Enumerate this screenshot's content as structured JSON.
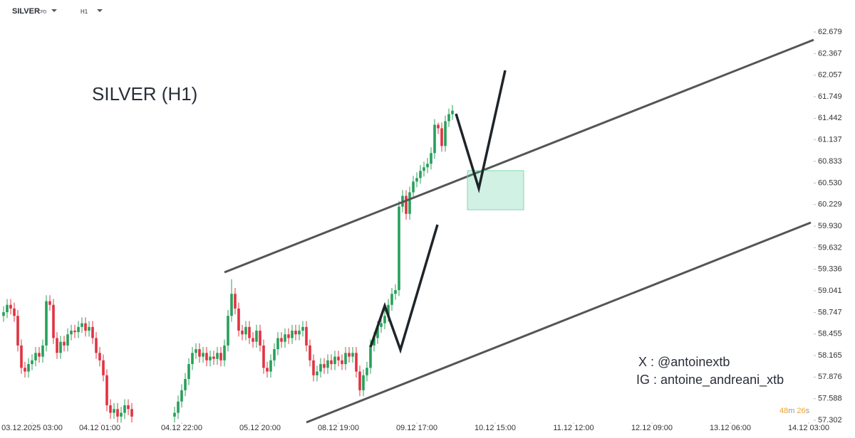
{
  "toolbar": {
    "symbol": "SILVER",
    "symbol_type": "CFD",
    "timeframe": "H1"
  },
  "chart_data": {
    "type": "candlestick",
    "title": "SILVER (H1)",
    "annotations": [
      "X : @antoinextb",
      "IG : antoine_andreani_xtb"
    ],
    "timer": [
      "48",
      "m",
      "26",
      "s"
    ],
    "up_color": "#27a05a",
    "down_color": "#e03341",
    "log_scale": true,
    "ylim": [
      57.302,
      62.679
    ],
    "yticks": [
      62.679,
      62.367,
      62.057,
      61.749,
      61.442,
      61.137,
      60.833,
      {
        "value": 60.53,
        "label": "60.530"
      },
      60.229,
      {
        "value": 59.93,
        "label": "59.930"
      },
      59.632,
      59.336,
      59.041,
      58.747,
      58.455,
      58.165,
      57.876,
      57.588,
      57.302
    ],
    "xlim": [
      -1,
      227
    ],
    "xticks": [
      {
        "value": 8,
        "label": "03.12.2025  03:00"
      },
      {
        "value": 27,
        "label": "04.12  01:00"
      },
      {
        "value": 50,
        "label": "04.12  22:00"
      },
      {
        "value": 72,
        "label": "05.12  20:00"
      },
      {
        "value": 94,
        "label": "08.12  19:00"
      },
      {
        "value": 116,
        "label": "09.12  17:00"
      },
      {
        "value": 138,
        "label": "10.12  15:00"
      },
      {
        "value": 160,
        "label": "11.12  12:00"
      },
      {
        "value": 182,
        "label": "12.12  09:00"
      },
      {
        "value": 204,
        "label": "13.12  06:00"
      },
      {
        "value": 226,
        "label": "14.12  03:00"
      }
    ],
    "x": [
      0,
      1,
      2,
      3,
      4,
      5,
      6,
      7,
      8,
      9,
      10,
      11,
      12,
      13,
      14,
      15,
      16,
      17,
      18,
      19,
      20,
      21,
      22,
      23,
      24,
      25,
      26,
      27,
      28,
      29,
      30,
      31,
      32,
      33,
      34,
      35,
      36,
      48,
      49,
      50,
      51,
      52,
      53,
      54,
      55,
      56,
      57,
      58,
      59,
      60,
      61,
      62,
      63,
      64,
      65,
      66,
      67,
      68,
      69,
      70,
      71,
      72,
      73,
      74,
      75,
      76,
      77,
      78,
      79,
      80,
      81,
      82,
      83,
      84,
      85,
      86,
      87,
      88,
      89,
      90,
      91,
      92,
      93,
      94,
      95,
      96,
      97,
      98,
      99,
      100,
      101,
      102,
      103,
      104,
      105,
      106,
      107,
      108,
      109,
      110,
      111,
      112,
      113,
      114,
      115,
      116,
      117,
      118,
      119,
      120,
      121,
      122,
      123,
      124,
      125,
      126
    ],
    "open": [
      58.7,
      58.75,
      58.85,
      58.8,
      58.7,
      58.3,
      58.0,
      57.95,
      58.05,
      58.1,
      58.2,
      58.15,
      58.3,
      58.9,
      58.85,
      58.4,
      58.2,
      58.35,
      58.3,
      58.45,
      58.5,
      58.48,
      58.55,
      58.6,
      58.5,
      58.55,
      58.4,
      58.2,
      58.1,
      57.9,
      57.5,
      57.4,
      57.45,
      57.35,
      57.4,
      57.5,
      57.45,
      57.35,
      57.4,
      57.55,
      57.7,
      57.85,
      58.05,
      58.2,
      58.25,
      58.15,
      58.2,
      58.1,
      58.15,
      58.12,
      58.2,
      58.1,
      58.3,
      58.7,
      59.0,
      58.8,
      58.5,
      58.45,
      58.55,
      58.4,
      58.35,
      58.5,
      58.3,
      58.0,
      57.95,
      58.1,
      58.25,
      58.4,
      58.35,
      58.45,
      58.4,
      58.5,
      58.45,
      58.5,
      58.55,
      58.3,
      58.1,
      57.9,
      57.95,
      58.05,
      58.0,
      58.1,
      58.05,
      58.15,
      58.1,
      58.05,
      58.2,
      58.15,
      58.2,
      57.95,
      57.7,
      57.9,
      58.0,
      58.3,
      58.4,
      58.55,
      58.6,
      58.7,
      58.85,
      59.0,
      59.05,
      60.2,
      60.35,
      60.1,
      60.4,
      60.55,
      60.6,
      60.7,
      60.75,
      60.8,
      60.95,
      61.35,
      61.3,
      61.05,
      61.4,
      61.5
    ],
    "high": [
      58.83,
      58.93,
      58.93,
      58.88,
      58.78,
      58.38,
      58.08,
      58.13,
      58.18,
      58.28,
      58.28,
      58.38,
      58.98,
      58.98,
      58.93,
      58.48,
      58.43,
      58.43,
      58.53,
      58.58,
      58.58,
      58.63,
      58.68,
      58.68,
      58.63,
      58.63,
      58.48,
      58.28,
      58.18,
      57.98,
      57.58,
      57.53,
      57.53,
      57.48,
      57.58,
      57.58,
      57.53,
      57.48,
      57.63,
      57.78,
      57.93,
      58.13,
      58.28,
      58.33,
      58.33,
      58.28,
      58.28,
      58.23,
      58.23,
      58.28,
      58.28,
      58.38,
      58.78,
      59.2,
      59.08,
      58.88,
      58.58,
      58.63,
      58.63,
      58.48,
      58.58,
      58.58,
      58.38,
      58.08,
      58.18,
      58.33,
      58.48,
      58.48,
      58.53,
      58.53,
      58.58,
      58.58,
      58.58,
      58.63,
      58.63,
      58.38,
      58.18,
      58.03,
      58.13,
      58.13,
      58.18,
      58.18,
      58.23,
      58.23,
      58.18,
      58.28,
      58.28,
      58.28,
      58.28,
      58.03,
      57.98,
      58.08,
      58.38,
      58.48,
      58.63,
      58.68,
      58.78,
      58.93,
      59.08,
      59.13,
      60.28,
      60.43,
      60.43,
      60.48,
      60.63,
      60.68,
      60.78,
      60.83,
      60.88,
      61.03,
      61.43,
      61.38,
      61.38,
      61.48,
      61.58,
      61.63
    ],
    "low": [
      58.62,
      58.67,
      58.72,
      58.62,
      58.22,
      57.92,
      57.87,
      57.87,
      57.97,
      58.02,
      58.07,
      58.07,
      58.22,
      58.77,
      58.32,
      58.12,
      58.12,
      58.22,
      58.22,
      58.37,
      58.4,
      58.4,
      58.47,
      58.42,
      58.42,
      58.32,
      58.12,
      58.02,
      57.82,
      57.42,
      57.32,
      57.32,
      57.27,
      57.27,
      57.32,
      57.37,
      57.27,
      57.27,
      57.32,
      57.47,
      57.62,
      57.77,
      57.97,
      58.12,
      58.07,
      58.07,
      58.02,
      58.02,
      58.04,
      58.04,
      58.02,
      58.02,
      58.22,
      58.62,
      58.72,
      58.42,
      58.37,
      58.37,
      58.32,
      58.27,
      58.27,
      58.22,
      57.92,
      57.87,
      57.87,
      58.02,
      58.17,
      58.27,
      58.27,
      58.32,
      58.32,
      58.37,
      58.37,
      58.42,
      58.22,
      58.02,
      57.82,
      57.82,
      57.87,
      57.92,
      57.92,
      57.97,
      57.97,
      58.02,
      57.97,
      57.97,
      58.07,
      58.07,
      57.87,
      57.62,
      57.62,
      57.82,
      57.92,
      58.22,
      58.32,
      58.47,
      58.52,
      58.62,
      58.77,
      58.92,
      58.97,
      60.12,
      60.02,
      60.02,
      60.32,
      60.47,
      60.52,
      60.62,
      60.67,
      60.72,
      60.87,
      61.22,
      60.97,
      60.97,
      61.32,
      61.42
    ],
    "close": [
      58.75,
      58.85,
      58.8,
      58.7,
      58.3,
      58.0,
      57.95,
      58.05,
      58.1,
      58.2,
      58.15,
      58.3,
      58.9,
      58.85,
      58.4,
      58.2,
      58.35,
      58.3,
      58.45,
      58.5,
      58.48,
      58.55,
      58.6,
      58.5,
      58.55,
      58.4,
      58.2,
      58.1,
      57.9,
      57.5,
      57.4,
      57.45,
      57.35,
      57.4,
      57.5,
      57.45,
      57.35,
      57.4,
      57.55,
      57.7,
      57.85,
      58.05,
      58.2,
      58.25,
      58.15,
      58.2,
      58.1,
      58.15,
      58.12,
      58.2,
      58.1,
      58.3,
      58.7,
      59.0,
      58.8,
      58.5,
      58.45,
      58.55,
      58.4,
      58.35,
      58.5,
      58.3,
      58.0,
      57.95,
      58.1,
      58.25,
      58.4,
      58.35,
      58.45,
      58.4,
      58.5,
      58.45,
      58.5,
      58.55,
      58.3,
      58.1,
      57.9,
      57.95,
      58.05,
      58.0,
      58.1,
      58.05,
      58.15,
      58.1,
      58.05,
      58.2,
      58.15,
      58.2,
      57.95,
      57.7,
      57.9,
      58.0,
      58.3,
      58.4,
      58.55,
      58.6,
      58.7,
      58.85,
      59.0,
      59.05,
      60.2,
      60.35,
      60.1,
      60.4,
      60.55,
      60.6,
      60.7,
      60.75,
      60.8,
      60.95,
      61.35,
      61.3,
      61.05,
      61.4,
      61.5,
      61.55
    ]
  }
}
